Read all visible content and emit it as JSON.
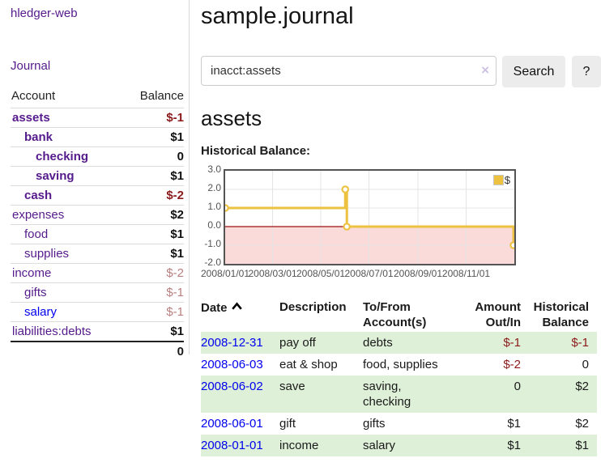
{
  "app": {
    "brand": "hledger-web",
    "nav_journal": "Journal"
  },
  "sidebar": {
    "header": {
      "account": "Account",
      "balance": "Balance"
    },
    "rows": [
      {
        "name": "assets",
        "balance": "$-1",
        "depth": 1
      },
      {
        "name": "bank",
        "balance": "$1",
        "depth": 2
      },
      {
        "name": "checking",
        "balance": "0",
        "depth": 3
      },
      {
        "name": "saving",
        "balance": "$1",
        "depth": 3
      },
      {
        "name": "cash",
        "balance": "$-2",
        "depth": 2
      },
      {
        "name": "expenses",
        "balance": "$2",
        "depth": 1
      },
      {
        "name": "food",
        "balance": "$1",
        "depth": 2
      },
      {
        "name": "supplies",
        "balance": "$1",
        "depth": 2
      },
      {
        "name": "income",
        "balance": "$-2",
        "depth": 1
      },
      {
        "name": "gifts",
        "balance": "$-1",
        "depth": 2
      },
      {
        "name": "salary",
        "balance": "$-1",
        "depth": 2
      },
      {
        "name": "liabilities:debts",
        "balance": "$1",
        "depth": 1
      }
    ],
    "total": "0"
  },
  "main": {
    "title": "sample.journal"
  },
  "search": {
    "value": "inacct:assets",
    "clear_icon": "×",
    "button_label": "Search",
    "help_label": "?"
  },
  "account_view": {
    "heading": "assets",
    "section_label": "Historical Balance:"
  },
  "chart_data": {
    "type": "line",
    "style": "step",
    "title": "Historical Balance",
    "series": [
      {
        "name": "$",
        "color": "#edc240",
        "points": [
          [
            "2008-01-01",
            1
          ],
          [
            "2008-06-01",
            2
          ],
          [
            "2008-06-03",
            0
          ],
          [
            "2008-12-31",
            -1
          ]
        ]
      }
    ],
    "x_domain": [
      "2008-01-01",
      "2009-01-01"
    ],
    "x_ticks": [
      "2008/01/01",
      "2008/03/01",
      "2008/05/01",
      "2008/07/01",
      "2008/09/01",
      "2008/11/01"
    ],
    "y_ticks": [
      3.0,
      2.0,
      1.0,
      0.0,
      -1.0,
      -2.0
    ],
    "ylim": [
      -2,
      3
    ],
    "grid": true,
    "legend_position": "top-right",
    "legend": {
      "label": "$",
      "swatch_color": "#edc240"
    },
    "negative_region_color": "#fbdada",
    "zero_line_color": "#9e0e0e",
    "grid_color": "#e4e4e4"
  },
  "register": {
    "headers": {
      "date": "Date",
      "description": "Description",
      "tofrom_line1": "To/From",
      "tofrom_line2": "Account(s)",
      "amount_line1": "Amount",
      "amount_line2": "Out/In",
      "balance_line1": "Historical",
      "balance_line2": "Balance"
    },
    "sort": "ascending",
    "rows": [
      {
        "date": "2008-12-31",
        "description": "pay off",
        "accounts": "debts",
        "amount": "$-1",
        "balance": "$-1"
      },
      {
        "date": "2008-06-03",
        "description": "eat & shop",
        "accounts": "food, supplies",
        "amount": "$-2",
        "balance": "0"
      },
      {
        "date": "2008-06-02",
        "description": "save",
        "accounts": "saving, checking",
        "amount": "0",
        "balance": "$2"
      },
      {
        "date": "2008-06-01",
        "description": "gift",
        "accounts": "gifts",
        "amount": "$1",
        "balance": "$2"
      },
      {
        "date": "2008-01-01",
        "description": "income",
        "accounts": "salary",
        "amount": "$1",
        "balance": "$1"
      }
    ]
  }
}
